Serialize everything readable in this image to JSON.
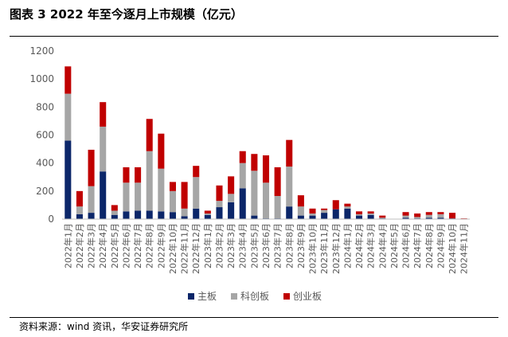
{
  "header": {
    "title": "图表 3 2022 年至今逐月上市规模（亿元）"
  },
  "footer": {
    "source": "资料来源：wind 资讯，华安证券研究所"
  },
  "chart_data": {
    "type": "bar",
    "stacked": true,
    "title": "图表 3 2022 年至今逐月上市规模（亿元）",
    "xlabel": "",
    "ylabel": "",
    "ylim": [
      0,
      1200
    ],
    "yticks": [
      0,
      200,
      400,
      600,
      800,
      1000,
      1200
    ],
    "grid": false,
    "legend_position": "bottom",
    "categories": [
      "2022年1月",
      "2022年2月",
      "2022年3月",
      "2022年4月",
      "2022年5月",
      "2022年6月",
      "2022年7月",
      "2022年8月",
      "2022年9月",
      "2022年10月",
      "2022年11月",
      "2022年12月",
      "2023年1月",
      "2023年2月",
      "2023年3月",
      "2023年4月",
      "2023年5月",
      "2023年6月",
      "2023年7月",
      "2023年8月",
      "2023年9月",
      "2023年10月",
      "2023年11月",
      "2023年12月",
      "2024年1月",
      "2024年2月",
      "2024年3月",
      "2024年4月",
      "2024年5月",
      "2024年6月",
      "2024年7月",
      "2024年8月",
      "2024年9月",
      "2024年10月",
      "2024年11月"
    ],
    "series": [
      {
        "name": "主板",
        "color": "#0b2669",
        "values": [
          560,
          35,
          45,
          340,
          30,
          55,
          60,
          60,
          55,
          50,
          20,
          75,
          30,
          85,
          120,
          220,
          25,
          5,
          5,
          90,
          25,
          25,
          45,
          70,
          75,
          25,
          30,
          5,
          0,
          10,
          5,
          10,
          10,
          5,
          0
        ]
      },
      {
        "name": "科创板",
        "color": "#a6a6a6",
        "values": [
          335,
          55,
          190,
          320,
          30,
          205,
          200,
          425,
          305,
          150,
          55,
          225,
          10,
          45,
          60,
          180,
          320,
          255,
          160,
          285,
          65,
          15,
          20,
          0,
          15,
          10,
          10,
          5,
          0,
          15,
          10,
          20,
          25,
          0,
          0
        ]
      },
      {
        "name": "创业板",
        "color": "#c00000",
        "values": [
          195,
          110,
          260,
          175,
          40,
          110,
          110,
          230,
          250,
          65,
          190,
          80,
          20,
          110,
          125,
          85,
          120,
          195,
          205,
          190,
          80,
          35,
          10,
          65,
          20,
          20,
          15,
          15,
          0,
          25,
          25,
          20,
          15,
          40,
          5
        ]
      }
    ]
  }
}
